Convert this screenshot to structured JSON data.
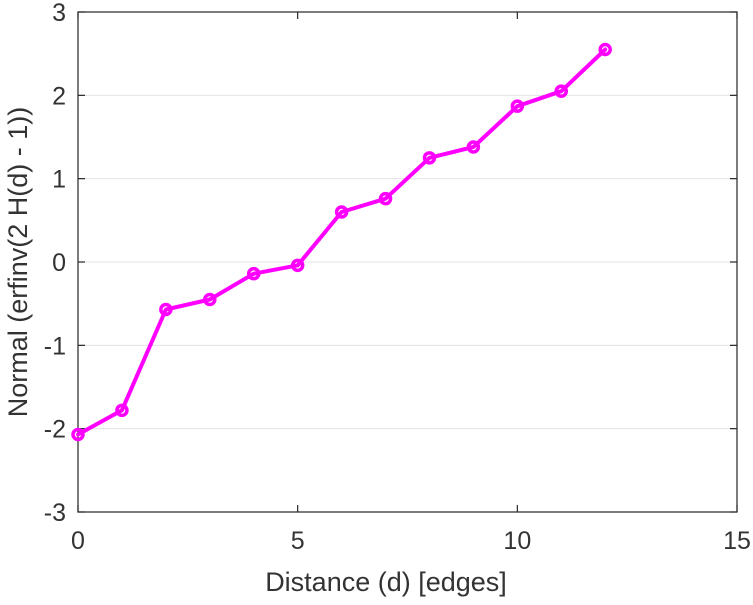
{
  "chart_data": {
    "type": "line",
    "title": "",
    "xlabel": "Distance (d) [edges]",
    "ylabel": "Normal (erfinv(2 H(d) - 1))",
    "xlim": [
      0,
      15
    ],
    "ylim": [
      -3,
      3
    ],
    "xticks": [
      0,
      5,
      10,
      15
    ],
    "yticks": [
      -3,
      -2,
      -1,
      0,
      1,
      2,
      3
    ],
    "grid": "horizontal",
    "series": [
      {
        "color": "#ff00ff",
        "marker": "circle",
        "x": [
          0,
          1,
          2,
          3,
          4,
          5,
          6,
          7,
          8,
          9,
          10,
          11,
          12
        ],
        "y": [
          -2.07,
          -1.78,
          -0.57,
          -0.45,
          -0.14,
          -0.04,
          0.6,
          0.76,
          1.25,
          1.38,
          1.87,
          2.05,
          2.55
        ]
      }
    ]
  }
}
